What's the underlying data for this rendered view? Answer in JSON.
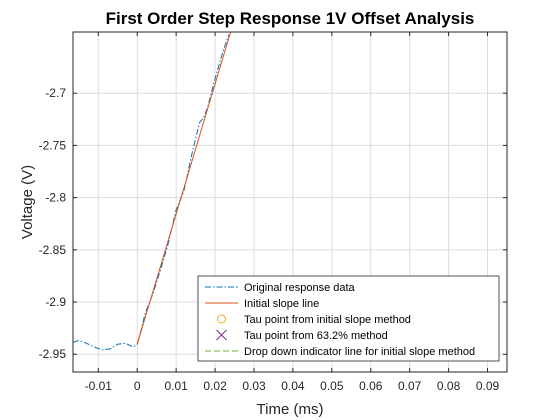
{
  "chart_data": {
    "type": "line",
    "title": "First Order Step Response 1V Offset Analysis",
    "xlabel": "Time (ms)",
    "ylabel": "Voltage (V)",
    "xlim": [
      -0.0165,
      0.095
    ],
    "ylim": [
      -2.967,
      -2.6414
    ],
    "xticks": [
      -0.01,
      0,
      0.01,
      0.02,
      0.03,
      0.04,
      0.05,
      0.06,
      0.07,
      0.08,
      0.09
    ],
    "xtick_labels": [
      "-0.01",
      "0",
      "0.01",
      "0.02",
      "0.03",
      "0.04",
      "0.05",
      "0.06",
      "0.07",
      "0.08",
      "0.09"
    ],
    "yticks": [
      -2.95,
      -2.9,
      -2.85,
      -2.8,
      -2.75,
      -2.7
    ],
    "ytick_labels": [
      "-2.95",
      "-2.9",
      "-2.85",
      "-2.8",
      "-2.75",
      "-2.7"
    ],
    "grid": true,
    "legend_position": "bottom-right",
    "series": [
      {
        "name": "Original response data",
        "color": "#0072BD",
        "style": "dashdot",
        "x": [
          -0.0165,
          -0.015,
          -0.013,
          -0.011,
          -0.009,
          -0.007,
          -0.005,
          -0.003,
          -0.001,
          0,
          0.001,
          0.002,
          0.004,
          0.006,
          0.008,
          0.01,
          0.012,
          0.014,
          0.016,
          0.017,
          0.018,
          0.02,
          0.022,
          0.0235
        ],
        "y": [
          -2.9386,
          -2.9368,
          -2.9395,
          -2.9431,
          -2.9458,
          -2.9449,
          -2.9404,
          -2.9395,
          -2.9431,
          -2.9404,
          -2.9268,
          -2.9114,
          -2.8924,
          -2.8689,
          -2.8435,
          -2.8118,
          -2.7936,
          -2.7591,
          -2.7283,
          -2.7238,
          -2.7148,
          -2.6858,
          -2.6604,
          -2.6441
        ]
      },
      {
        "name": "Initial slope line",
        "color": "#D95319",
        "style": "solid",
        "x": [
          0,
          0.024
        ],
        "y": [
          -2.9404,
          -2.6414
        ]
      }
    ],
    "legend": [
      {
        "label": "Original response data",
        "marker": "dashdot-line",
        "color": "#0072BD"
      },
      {
        "label": "Initial slope line",
        "marker": "solid-line",
        "color": "#D95319"
      },
      {
        "label": "Tau point from initial slope method",
        "marker": "circle",
        "color": "#EDB120"
      },
      {
        "label": "Tau point from 63.2% method",
        "marker": "x",
        "color": "#7E2F8E"
      },
      {
        "label": "Drop down indicator line for initial slope method",
        "marker": "dashed-line",
        "color": "#77AC30"
      }
    ]
  }
}
